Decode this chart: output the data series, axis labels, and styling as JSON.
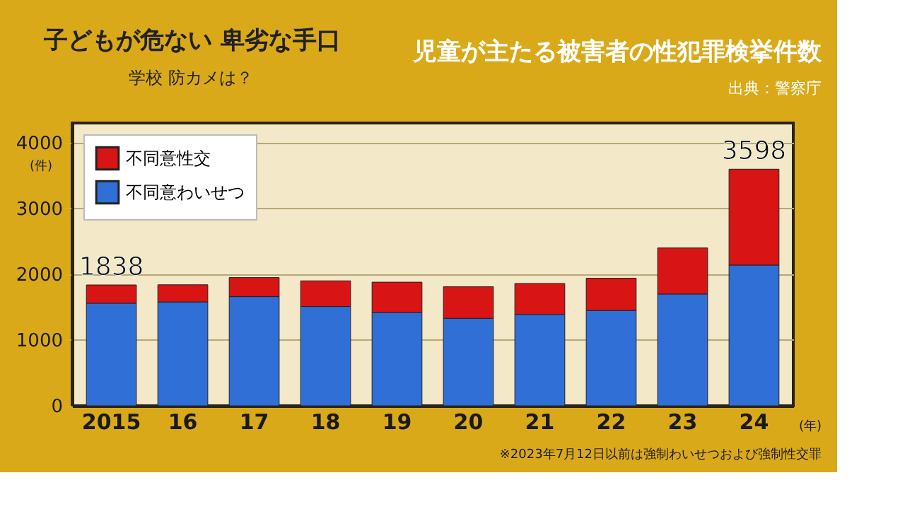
{
  "chart_data": {
    "type": "bar",
    "stacked": true,
    "title": "児童が主たる被害者の性犯罪検挙件数",
    "categories": [
      "2015",
      "16",
      "17",
      "18",
      "19",
      "20",
      "21",
      "22",
      "23",
      "24"
    ],
    "series": [
      {
        "name": "不同意わいせつ",
        "color": "#2f6fd6",
        "values": [
          1560,
          1580,
          1660,
          1510,
          1420,
          1330,
          1390,
          1450,
          1700,
          2140
        ]
      },
      {
        "name": "不同意性交",
        "color": "#d81414",
        "values": [
          278,
          260,
          290,
          390,
          460,
          480,
          470,
          490,
          700,
          1458
        ]
      }
    ],
    "totals": [
      "1838",
      null,
      null,
      null,
      null,
      null,
      null,
      null,
      null,
      "3598"
    ],
    "ylabel": "(件)",
    "xlabel": "(年)",
    "ylim": [
      0,
      4300
    ],
    "yticks": [
      0,
      1000,
      2000,
      3000,
      4000
    ],
    "grid": "y",
    "legend": "top left",
    "annotations": [
      "子どもが危ない 卑劣な手口",
      "学校 防カメは？",
      "出典：警察庁",
      "※2023年7月12日以前は強制わいせつおよび強制性交罪"
    ]
  }
}
